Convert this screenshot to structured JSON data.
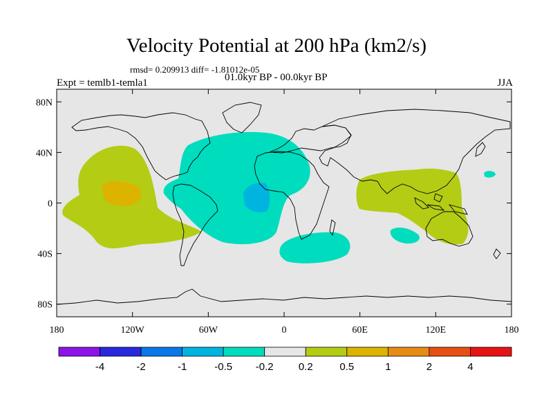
{
  "title": "Velocity Potential at 200 hPa (km2/s)",
  "stats": "rmsd= 0.209913 diff= -1.81012e-05",
  "period": "01.0kyr BP - 00.0kyr BP",
  "experiment": "Expt = temlb1-temla1",
  "season": "JJA",
  "map": {
    "lat_ticks": [
      "80N",
      "40N",
      "0",
      "40S",
      "80S"
    ],
    "lon_ticks": [
      "180",
      "120W",
      "60W",
      "0",
      "60E",
      "120E",
      "180"
    ],
    "background_color": "#e6e6e6",
    "anomaly_regions": [
      {
        "name": "central-pacific-positive",
        "level": "0.2 to 0.5",
        "color": "#b4cc14"
      },
      {
        "name": "central-pacific-core",
        "level": "0.5 to 1",
        "color": "#dcb400"
      },
      {
        "name": "atlantic-negative",
        "level": "-0.5 to -0.2",
        "color": "#00dcbe"
      },
      {
        "name": "equatorial-atlantic-core",
        "level": "-1 to -0.5",
        "color": "#00b4e0"
      },
      {
        "name": "southern-indian-ocean-negative",
        "level": "-0.5 to -0.2",
        "color": "#00dcbe"
      },
      {
        "name": "maritime-continent-positive",
        "level": "0.2 to 0.5",
        "color": "#b4cc14"
      },
      {
        "name": "east-indian-ocean-negative",
        "level": "-0.5 to -0.2",
        "color": "#00dcbe"
      },
      {
        "name": "western-pacific-negative",
        "level": "-0.5 to -0.2",
        "color": "#00dcbe"
      }
    ]
  },
  "colorbar": {
    "colors": [
      "#8c14e6",
      "#2828dc",
      "#0a78e6",
      "#00b4e0",
      "#00dcbe",
      "#e6e6e6",
      "#b4cc14",
      "#dcb400",
      "#e68c14",
      "#e65014",
      "#e61414"
    ],
    "labels": [
      "-4",
      "-2",
      "-1",
      "-0.5",
      "-0.2",
      "0.2",
      "0.5",
      "1",
      "2",
      "4"
    ]
  }
}
